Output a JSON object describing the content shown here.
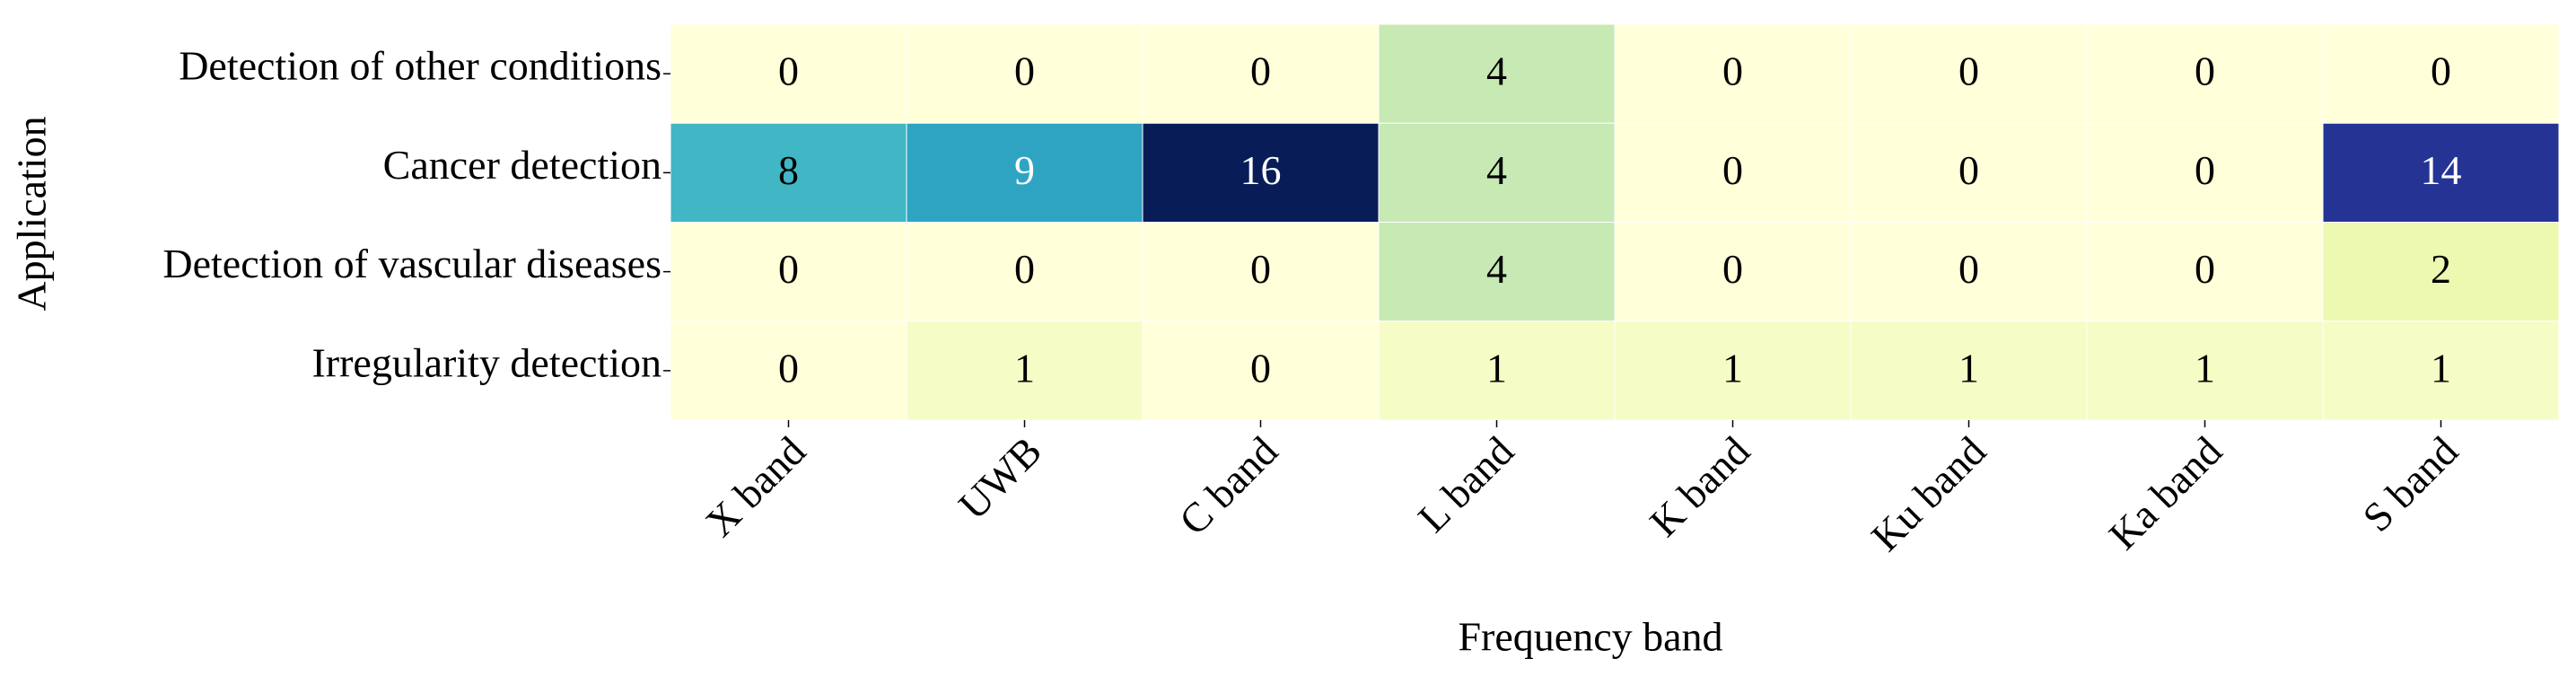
{
  "chart_data": {
    "type": "heatmap",
    "xlabel": "Frequency band",
    "ylabel": "Application",
    "x": [
      "X band",
      "UWB",
      "C band",
      "L band",
      "K band",
      "Ku band",
      "Ka band",
      "S band"
    ],
    "y": [
      "Detection of other conditions",
      "Cancer detection",
      "Detection of vascular diseases",
      "Irregularity detection"
    ],
    "z": [
      [
        0,
        0,
        0,
        4,
        0,
        0,
        0,
        0
      ],
      [
        8,
        9,
        16,
        4,
        0,
        0,
        0,
        14
      ],
      [
        0,
        0,
        0,
        4,
        0,
        0,
        0,
        2
      ],
      [
        0,
        1,
        0,
        1,
        1,
        1,
        1,
        1
      ]
    ],
    "zlim": [
      0,
      16
    ],
    "colormap": [
      "#ffffd9",
      "#edf8b1",
      "#c7e9b4",
      "#7fcdbb",
      "#41b6c4",
      "#1d91c0",
      "#225ea8",
      "#253494",
      "#081d58"
    ]
  }
}
